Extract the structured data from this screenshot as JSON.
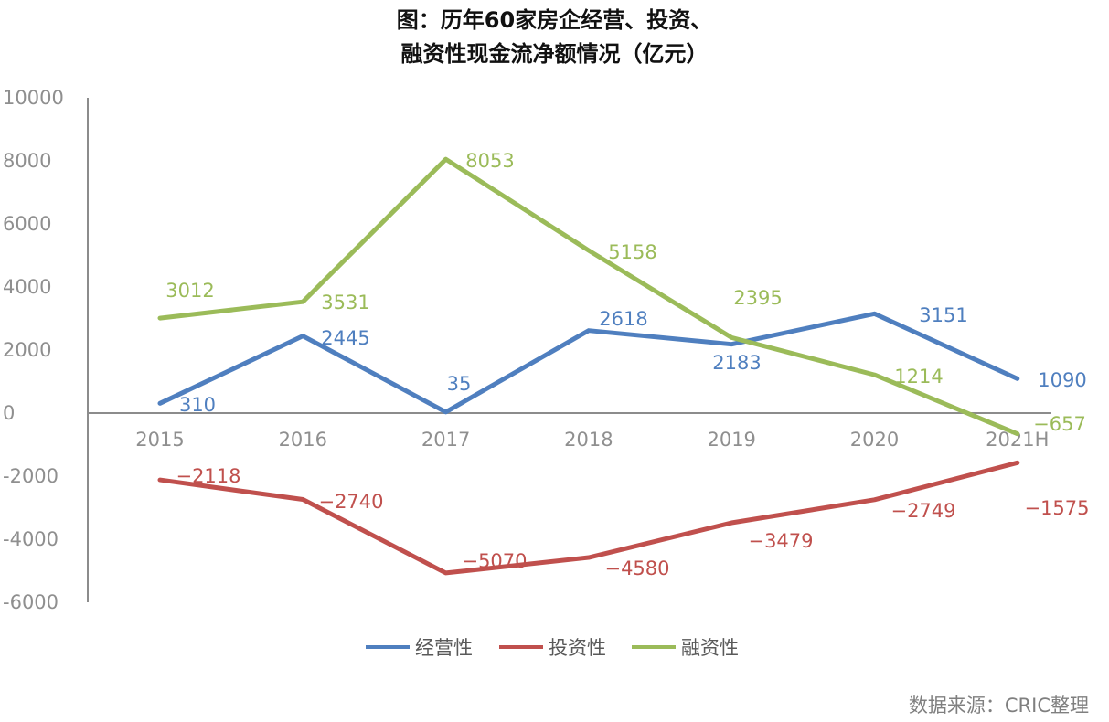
{
  "chart_data": {
    "type": "line",
    "title": "图：历年60家房企经营、投资、",
    "subtitle": "融资性现金流净额情况（亿元）",
    "categories": [
      "2015",
      "2016",
      "2017",
      "2018",
      "2019",
      "2020",
      "2021H"
    ],
    "series": [
      {
        "name": "经营性",
        "color": "#4f7fbf",
        "values": [
          310,
          2445,
          35,
          2618,
          2183,
          3151,
          1090
        ]
      },
      {
        "name": "投资性",
        "color": "#c0504d",
        "values": [
          -2118,
          -2740,
          -5070,
          -4580,
          -3479,
          -2749,
          -1575
        ]
      },
      {
        "name": "融资性",
        "color": "#9bbb59",
        "values": [
          3012,
          3531,
          8053,
          5158,
          2395,
          1214,
          -657
        ]
      }
    ],
    "ylim": [
      -6000,
      10000
    ],
    "yticks": [
      10000,
      8000,
      6000,
      4000,
      2000,
      0,
      -2000,
      -4000,
      -6000
    ],
    "ytick_labels": [
      "10000",
      "8000",
      "6000",
      "4000",
      "2000",
      "0",
      "-2000",
      "-4000",
      "-6000"
    ],
    "grid": false,
    "legend": "bottom",
    "xlabel": "",
    "ylabel": ""
  },
  "footer": {
    "source": "数据来源：CRIC整理"
  }
}
